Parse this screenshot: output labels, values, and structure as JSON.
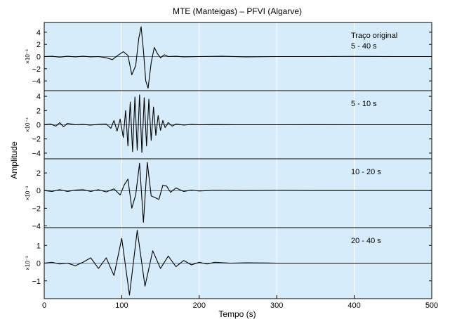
{
  "chart_data": {
    "type": "line",
    "title": "MTE (Manteigas) – PFVI (Algarve)",
    "xlabel": "Tempo (s)",
    "ylabel": "Amplitude",
    "xlim": [
      0,
      500
    ],
    "x_ticks": [
      "0",
      "100",
      "200",
      "300",
      "400",
      "500"
    ],
    "grid": "vertical",
    "background_color": "#d6ecfa",
    "line_color": "#000000",
    "panels": [
      {
        "label_lines": [
          "Traço original",
          "5 - 40 s"
        ],
        "scale": "×10⁻³",
        "ylim": [
          -5.6,
          5.6
        ],
        "y_ticks": [
          -4,
          -2,
          0,
          2,
          4
        ],
        "series": {
          "x": [
            0,
            10,
            20,
            30,
            40,
            50,
            60,
            70,
            80,
            88,
            95,
            102,
            108,
            113,
            118,
            122,
            125,
            128,
            131,
            134,
            138,
            142,
            146,
            150,
            155,
            160,
            170,
            180,
            200,
            230,
            260,
            300,
            350,
            400,
            450,
            500
          ],
          "y": [
            0,
            0.05,
            -0.1,
            0.05,
            -0.05,
            0.05,
            -0.05,
            0,
            -0.2,
            -0.5,
            0.2,
            0.8,
            0.2,
            -3.0,
            -1.5,
            3.0,
            4.9,
            1.0,
            -4.0,
            -5.2,
            -1.0,
            1.5,
            0.5,
            -0.2,
            0.3,
            0,
            0.05,
            -0.05,
            0,
            0.05,
            -0.05,
            0,
            0,
            0.03,
            0,
            0
          ]
        }
      },
      {
        "label_lines": [
          "5 - 10 s"
        ],
        "scale": "×10⁻⁴",
        "ylim": [
          -4.8,
          4.8
        ],
        "y_ticks": [
          -4,
          -2,
          0,
          2,
          4
        ],
        "series": {
          "x": [
            0,
            8,
            15,
            20,
            25,
            30,
            40,
            50,
            60,
            70,
            80,
            86,
            90,
            94,
            98,
            102,
            105,
            108,
            111,
            114,
            117,
            120,
            123,
            126,
            129,
            132,
            135,
            138,
            141,
            144,
            147,
            150,
            153,
            156,
            160,
            165,
            170,
            180,
            190,
            200,
            220,
            250,
            300,
            350,
            400,
            450,
            500
          ],
          "y": [
            0,
            0.1,
            -0.2,
            0.3,
            -0.3,
            0.2,
            0,
            0.05,
            -0.05,
            0.05,
            0.1,
            -0.5,
            0.6,
            -0.9,
            0.8,
            -1.8,
            2.0,
            -3.0,
            3.2,
            -3.8,
            3.9,
            -3.6,
            4.2,
            -3.9,
            3.8,
            -3.0,
            3.6,
            -2.2,
            2.5,
            -1.5,
            1.3,
            -0.8,
            0.6,
            -0.4,
            0.3,
            -0.2,
            0.1,
            -0.05,
            0.05,
            0,
            0.02,
            0,
            0,
            0.01,
            0,
            0,
            0
          ]
        }
      },
      {
        "label_lines": [
          "10 - 20 s"
        ],
        "scale": "×10⁻³",
        "ylim": [
          -4.2,
          3.6
        ],
        "y_ticks": [
          -4,
          -2,
          0,
          2
        ],
        "series": {
          "x": [
            0,
            10,
            20,
            30,
            40,
            50,
            60,
            70,
            80,
            90,
            98,
            103,
            108,
            113,
            118,
            123,
            128,
            133,
            138,
            143,
            148,
            153,
            158,
            163,
            170,
            180,
            190,
            200,
            220,
            250,
            300,
            350,
            400,
            450,
            500
          ],
          "y": [
            0,
            -0.1,
            0.1,
            -0.1,
            0.05,
            0.1,
            -0.1,
            0.1,
            -0.15,
            0.2,
            -0.5,
            0.6,
            1.3,
            -2.0,
            -0.5,
            3.1,
            -3.6,
            3.2,
            -0.6,
            -0.8,
            -1.0,
            0.6,
            0.5,
            -0.2,
            0.3,
            -0.1,
            0.05,
            -0.05,
            0.03,
            0,
            0.02,
            0,
            0,
            0,
            0
          ]
        }
      },
      {
        "label_lines": [
          "20 - 40 s"
        ],
        "scale": "×10⁻³",
        "ylim": [
          -2.0,
          2.0
        ],
        "y_ticks": [
          -1,
          0,
          1
        ],
        "series": {
          "x": [
            0,
            10,
            20,
            30,
            40,
            50,
            60,
            70,
            80,
            90,
            100,
            110,
            120,
            130,
            140,
            150,
            160,
            170,
            180,
            190,
            200,
            210,
            220,
            240,
            260,
            300,
            350,
            400,
            450,
            500
          ],
          "y": [
            0,
            0.05,
            -0.05,
            0,
            -0.15,
            0.05,
            0.3,
            -0.3,
            0.3,
            -0.7,
            1.4,
            -1.8,
            1.85,
            -1.3,
            0.7,
            -0.3,
            0.4,
            -0.2,
            0.15,
            -0.1,
            0.05,
            -0.05,
            0.05,
            0,
            0.02,
            0,
            0,
            0,
            0,
            0
          ]
        }
      }
    ]
  }
}
